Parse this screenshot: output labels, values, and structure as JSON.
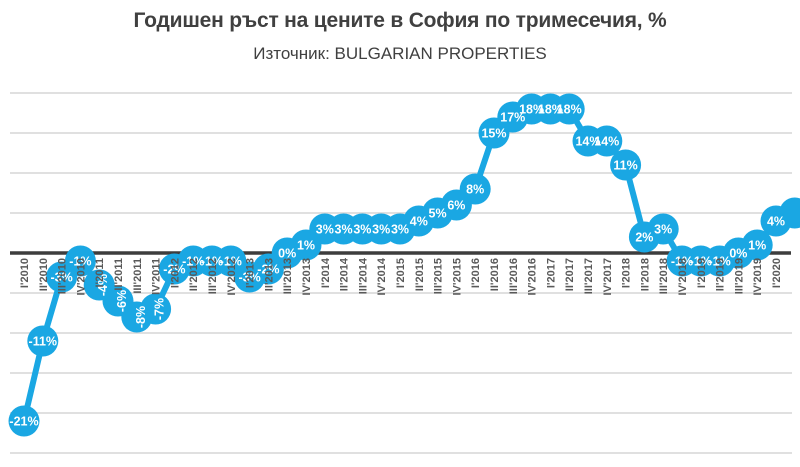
{
  "header": {
    "title": "Годишен ръст на цените в София по тримесечия, %",
    "subtitle": "Източник: BULGARIAN PROPERTIES"
  },
  "chart_data": {
    "type": "line",
    "title": "Годишен ръст на цените в София по тримесечия, %",
    "subtitle": "Източник: BULGARIAN PROPERTIES",
    "unit": "%",
    "categories": [
      "I'2010",
      "II'2010",
      "III'2010",
      "IV'2010",
      "I'2011",
      "II'2011",
      "III'2011",
      "IV'2011",
      "I'2012",
      "II'2012",
      "III'2012",
      "IV'2012",
      "I'2013",
      "II'2013",
      "III'2013",
      "IV'2013",
      "I'2014",
      "II'2014",
      "III'2014",
      "IV'2014",
      "I'2015",
      "II'2015",
      "III'2015",
      "IV'2015",
      "I'2016",
      "II'2016",
      "III'2016",
      "IV'2016",
      "I'2017",
      "II'2017",
      "III'2017",
      "IV'2017",
      "I'2018",
      "II'2018",
      "III'2018",
      "IV'2018",
      "I'2019",
      "II'2019",
      "III'2019",
      "IV'2019",
      "I'2020"
    ],
    "values": [
      -21,
      -11,
      -3,
      -1,
      -4,
      -6,
      -8,
      -7,
      -2,
      -1,
      -1,
      -1,
      -3,
      -2,
      0,
      1,
      3,
      3,
      3,
      3,
      3,
      4,
      5,
      6,
      8,
      15,
      17,
      18,
      18,
      18,
      14,
      14,
      11,
      2,
      3,
      -1,
      -1,
      -1,
      0,
      1,
      4
    ],
    "data_labels": [
      "-21%",
      "-11%",
      "-3%",
      "-1%",
      "-4%",
      "-6%",
      "-8%",
      "-7%",
      "-2%",
      "-1%",
      "-1%",
      "-1%",
      "-3%",
      "-2%",
      "0%",
      "1%",
      "3%",
      "3%",
      "3%",
      "3%",
      "3%",
      "4%",
      "5%",
      "6%",
      "8%",
      "15%",
      "17%",
      "18%",
      "18%",
      "18%",
      "14%",
      "14%",
      "11%",
      "2%",
      "3%",
      "-1%",
      "-1%",
      "-1%",
      "0%",
      "1%",
      "4%"
    ],
    "rotated_data_label_indices": [
      4,
      5,
      6,
      7
    ],
    "clipped_edge_point": {
      "approx_value": 5,
      "label_visible": false
    },
    "ylim": [
      -25,
      20
    ],
    "gridline_step": 5,
    "grid": true,
    "legend": "none",
    "y_axis_labels_visible": false,
    "x_axis_label_rotation_deg": -90,
    "colors": {
      "series": "#1AA7E3",
      "data_label": "#FFFFFF",
      "gridline": "#D6D6D6",
      "zero_line": "#3D3D3D",
      "axis_label": "#595959",
      "title": "#404040",
      "background": "#FFFFFF"
    }
  }
}
